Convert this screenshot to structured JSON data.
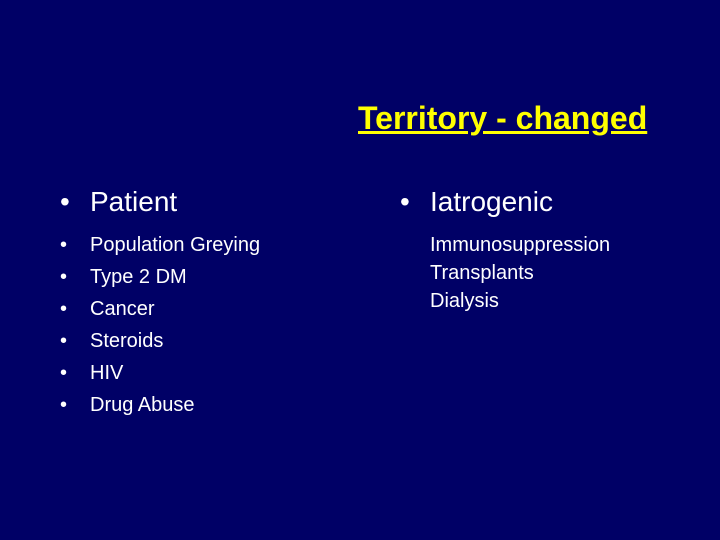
{
  "title": "Territory - changed",
  "left": {
    "heading": "Patient",
    "items": [
      "Population Greying",
      "Type 2 DM",
      "Cancer",
      "Steroids",
      "HIV",
      "Drug Abuse"
    ]
  },
  "right": {
    "heading": "Iatrogenic",
    "sub": "Immunosuppression",
    "items": [
      "Transplants",
      "Dialysis"
    ]
  },
  "colors": {
    "background": "#000066",
    "title": "#ffff00",
    "text": "#ffffff"
  },
  "fontsizes": {
    "title": 32,
    "heading": 28,
    "body": 20
  }
}
